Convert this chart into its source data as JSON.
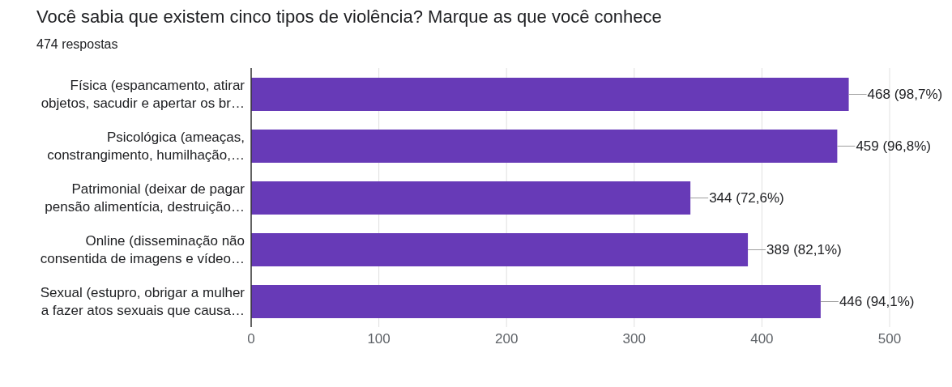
{
  "chart_data": {
    "type": "bar",
    "orientation": "horizontal",
    "title": "Você sabia que existem cinco tipos de violência? Marque as que você conhece",
    "subtitle": "474 respostas",
    "categories": [
      "Física (espancamento, atirar\nobjetos, sacudir e apertar os br…",
      "Psicológica (ameaças,\nconstrangimento, humilhação,…",
      "Patrimonial (deixar de pagar\npensão alimentícia, destruição…",
      "Online (disseminação não\nconsentida de imagens e vídeo…",
      "Sexual (estupro, obrigar a mulher\na fazer atos sexuais que causa…"
    ],
    "values": [
      468,
      459,
      344,
      389,
      446
    ],
    "value_labels": [
      "468 (98,7%)",
      "459 (96,8%)",
      "344 (72,6%)",
      "389 (82,1%)",
      "446 (94,1%)"
    ],
    "color": "#673ab7",
    "xlim": [
      0,
      500
    ],
    "xticks": [
      0,
      100,
      200,
      300,
      400,
      500
    ],
    "grid": "x",
    "legend": false
  }
}
